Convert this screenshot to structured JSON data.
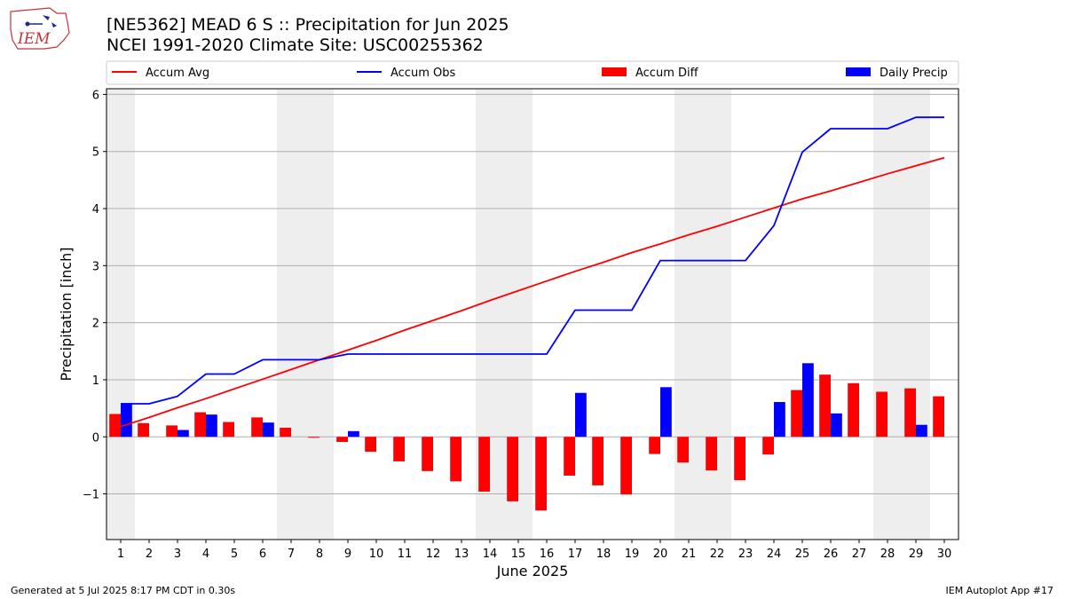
{
  "header": {
    "title_line1": "[NE5362] MEAD 6 S :: Precipitation for Jun 2025",
    "title_line2": "NCEI 1991-2020 Climate Site: USC00255362",
    "logo_text": "IEM"
  },
  "footer": {
    "left": "Generated at 5 Jul 2025 8:17 PM CDT in 0.30s",
    "right": "IEM Autoplot App #17"
  },
  "colors": {
    "avg": "#ff0000",
    "obs": "#0000ff",
    "diff": "#ff0000",
    "daily": "#0000ff",
    "weekend_shade": "#eeeeee",
    "grid": "#b0b0b0"
  },
  "chart_data": {
    "type": "bar",
    "xlabel": "June 2025",
    "ylabel": "Precipitation [inch]",
    "xlim": [
      0.5,
      30.5
    ],
    "ylim": [
      -1.8,
      6.1
    ],
    "yticks": [
      -1,
      0,
      1,
      2,
      3,
      4,
      5,
      6
    ],
    "ytick_labels": [
      "−1",
      "0",
      "1",
      "2",
      "3",
      "4",
      "5",
      "6"
    ],
    "grid": "horizontal",
    "legend_placement": "top",
    "days": [
      1,
      2,
      3,
      4,
      5,
      6,
      7,
      8,
      9,
      10,
      11,
      12,
      13,
      14,
      15,
      16,
      17,
      18,
      19,
      20,
      21,
      22,
      23,
      24,
      25,
      26,
      27,
      28,
      29,
      30
    ],
    "shaded_days": [
      1,
      7,
      8,
      14,
      15,
      21,
      22,
      28,
      29
    ],
    "series": [
      {
        "name": "Accum Avg",
        "kind": "line",
        "color": "#ff0000",
        "values": [
          0.18,
          0.34,
          0.51,
          0.67,
          0.84,
          1.01,
          1.18,
          1.35,
          1.52,
          1.69,
          1.87,
          2.04,
          2.21,
          2.39,
          2.56,
          2.73,
          2.9,
          3.06,
          3.23,
          3.38,
          3.54,
          3.69,
          3.85,
          4.01,
          4.17,
          4.31,
          4.46,
          4.61,
          4.75,
          4.89
        ]
      },
      {
        "name": "Accum Obs",
        "kind": "line",
        "color": "#0000ff",
        "values": [
          0.58,
          0.58,
          0.71,
          1.1,
          1.1,
          1.35,
          1.35,
          1.35,
          1.45,
          1.45,
          1.45,
          1.45,
          1.45,
          1.45,
          1.45,
          1.45,
          2.22,
          2.22,
          2.22,
          3.09,
          3.09,
          3.09,
          3.09,
          3.7,
          4.99,
          5.4,
          5.4,
          5.4,
          5.6,
          5.6
        ]
      },
      {
        "name": "Accum Diff",
        "kind": "bar",
        "color": "#ff0000",
        "values": [
          0.4,
          0.24,
          0.2,
          0.43,
          0.26,
          0.34,
          0.16,
          -0.01,
          -0.09,
          -0.26,
          -0.43,
          -0.6,
          -0.78,
          -0.96,
          -1.13,
          -1.29,
          -0.68,
          -0.85,
          -1.01,
          -0.3,
          -0.45,
          -0.59,
          -0.76,
          -0.31,
          0.82,
          1.09,
          0.94,
          0.79,
          0.85,
          0.71
        ]
      },
      {
        "name": "Daily Precip",
        "kind": "bar",
        "color": "#0000ff",
        "values": [
          0.59,
          0,
          0.12,
          0.39,
          0,
          0.25,
          0,
          0,
          0.1,
          0,
          0,
          0,
          0,
          0,
          0,
          0,
          0.77,
          0,
          0,
          0.87,
          0,
          0,
          0,
          0.61,
          1.29,
          0.41,
          0,
          0,
          0.21,
          0
        ]
      }
    ]
  }
}
